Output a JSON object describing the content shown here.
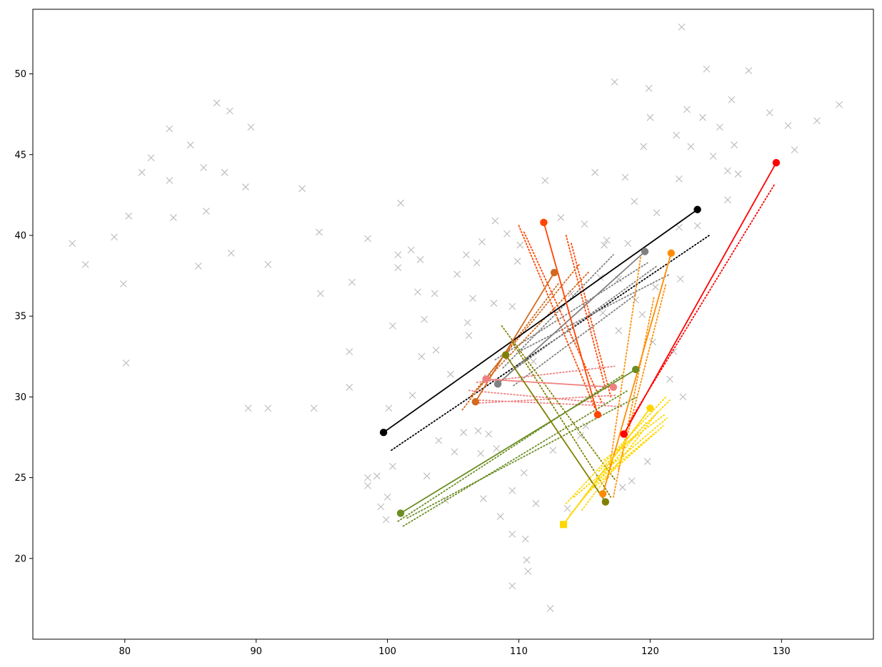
{
  "chart_data": {
    "type": "scatter",
    "title": "",
    "xlabel": "",
    "ylabel": "",
    "xlim": [
      73,
      137
    ],
    "ylim": [
      15,
      54
    ],
    "x_ticks": [
      80,
      90,
      100,
      110,
      120,
      130
    ],
    "y_ticks": [
      20,
      25,
      30,
      35,
      40,
      45,
      50
    ],
    "grid": false,
    "legend": "none",
    "background_points": {
      "marker": "x",
      "color": "#bbbbbb",
      "points": [
        [
          76.0,
          39.5
        ],
        [
          77.0,
          38.2
        ],
        [
          79.2,
          39.9
        ],
        [
          79.9,
          37.0
        ],
        [
          80.1,
          32.1
        ],
        [
          80.3,
          41.2
        ],
        [
          81.3,
          43.9
        ],
        [
          82.0,
          44.8
        ],
        [
          83.4,
          46.6
        ],
        [
          83.4,
          43.4
        ],
        [
          83.7,
          41.1
        ],
        [
          85.0,
          45.6
        ],
        [
          85.6,
          38.1
        ],
        [
          86.0,
          44.2
        ],
        [
          86.2,
          41.5
        ],
        [
          87.0,
          48.2
        ],
        [
          87.6,
          43.9
        ],
        [
          88.0,
          47.7
        ],
        [
          88.1,
          38.9
        ],
        [
          89.2,
          43.0
        ],
        [
          89.4,
          29.3
        ],
        [
          89.6,
          46.7
        ],
        [
          90.9,
          38.2
        ],
        [
          90.9,
          29.3
        ],
        [
          93.5,
          42.9
        ],
        [
          94.4,
          29.3
        ],
        [
          94.8,
          40.2
        ],
        [
          94.9,
          36.4
        ],
        [
          97.1,
          32.8
        ],
        [
          97.1,
          30.6
        ],
        [
          97.3,
          37.1
        ],
        [
          98.5,
          39.8
        ],
        [
          98.5,
          25.0
        ],
        [
          98.5,
          24.5
        ],
        [
          99.2,
          25.1
        ],
        [
          99.5,
          23.2
        ],
        [
          99.9,
          22.4
        ],
        [
          100.0,
          23.8
        ],
        [
          100.1,
          29.3
        ],
        [
          100.4,
          34.4
        ],
        [
          100.4,
          25.7
        ],
        [
          100.8,
          38.8
        ],
        [
          100.8,
          38.0
        ],
        [
          101.0,
          42.0
        ],
        [
          101.8,
          39.1
        ],
        [
          101.9,
          30.1
        ],
        [
          102.3,
          36.5
        ],
        [
          102.5,
          38.5
        ],
        [
          102.8,
          34.8
        ],
        [
          102.6,
          32.5
        ],
        [
          103.0,
          25.1
        ],
        [
          103.7,
          32.9
        ],
        [
          103.6,
          36.4
        ],
        [
          103.9,
          27.3
        ],
        [
          104.4,
          23.6
        ],
        [
          104.8,
          31.4
        ],
        [
          105.1,
          26.6
        ],
        [
          105.3,
          37.6
        ],
        [
          105.8,
          27.8
        ],
        [
          106.0,
          38.8
        ],
        [
          106.1,
          34.6
        ],
        [
          106.2,
          33.8
        ],
        [
          106.5,
          36.1
        ],
        [
          106.8,
          38.3
        ],
        [
          106.9,
          27.9
        ],
        [
          107.1,
          26.5
        ],
        [
          107.2,
          39.6
        ],
        [
          107.3,
          23.7
        ],
        [
          107.6,
          31.2
        ],
        [
          107.7,
          27.7
        ],
        [
          108.1,
          35.8
        ],
        [
          108.2,
          40.9
        ],
        [
          108.3,
          26.8
        ],
        [
          108.6,
          22.6
        ],
        [
          109.1,
          40.1
        ],
        [
          109.5,
          35.6
        ],
        [
          109.5,
          24.2
        ],
        [
          109.5,
          21.5
        ],
        [
          109.5,
          18.3
        ],
        [
          109.9,
          38.4
        ],
        [
          110.1,
          39.4
        ],
        [
          110.4,
          25.3
        ],
        [
          110.5,
          21.2
        ],
        [
          110.6,
          19.9
        ],
        [
          110.7,
          19.2
        ],
        [
          111.1,
          32.2
        ],
        [
          111.3,
          23.4
        ],
        [
          112.0,
          43.4
        ],
        [
          112.4,
          16.9
        ],
        [
          112.6,
          26.7
        ],
        [
          113.2,
          41.1
        ],
        [
          113.7,
          23.1
        ],
        [
          114.0,
          36.4
        ],
        [
          114.2,
          33.5
        ],
        [
          114.7,
          27.6
        ],
        [
          115.0,
          40.7
        ],
        [
          115.1,
          28.2
        ],
        [
          115.8,
          43.9
        ],
        [
          116.2,
          37.4
        ],
        [
          116.4,
          35.2
        ],
        [
          116.5,
          39.4
        ],
        [
          116.7,
          39.7
        ],
        [
          117.3,
          49.5
        ],
        [
          117.6,
          37.3
        ],
        [
          117.6,
          34.1
        ],
        [
          117.9,
          24.4
        ],
        [
          118.1,
          43.6
        ],
        [
          118.3,
          39.5
        ],
        [
          118.6,
          24.8
        ],
        [
          118.8,
          42.1
        ],
        [
          118.9,
          36.0
        ],
        [
          119.4,
          35.1
        ],
        [
          119.5,
          45.5
        ],
        [
          119.8,
          26.0
        ],
        [
          119.9,
          49.1
        ],
        [
          120.0,
          47.3
        ],
        [
          120.2,
          33.4
        ],
        [
          120.4,
          36.8
        ],
        [
          120.5,
          41.4
        ],
        [
          121.5,
          31.1
        ],
        [
          121.8,
          32.8
        ],
        [
          122.0,
          46.2
        ],
        [
          122.2,
          43.5
        ],
        [
          122.2,
          40.5
        ],
        [
          122.3,
          37.3
        ],
        [
          122.4,
          52.9
        ],
        [
          122.5,
          30.0
        ],
        [
          122.8,
          47.8
        ],
        [
          123.1,
          45.5
        ],
        [
          123.6,
          40.6
        ],
        [
          124.0,
          47.3
        ],
        [
          124.3,
          50.3
        ],
        [
          124.8,
          44.9
        ],
        [
          125.3,
          46.7
        ],
        [
          125.9,
          44.0
        ],
        [
          125.9,
          42.2
        ],
        [
          126.2,
          48.4
        ],
        [
          126.4,
          45.6
        ],
        [
          126.7,
          43.8
        ],
        [
          127.5,
          50.2
        ],
        [
          129.1,
          47.6
        ],
        [
          130.5,
          46.8
        ],
        [
          131.0,
          45.3
        ],
        [
          132.7,
          47.1
        ],
        [
          134.4,
          48.1
        ]
      ]
    },
    "series": [
      {
        "color": "#000000",
        "start_marker": "circle",
        "end_marker": "circle",
        "line": {
          "start": [
            99.7,
            27.8
          ],
          "end": [
            123.6,
            41.6
          ]
        },
        "dotted": [
          {
            "start": [
              100.3,
              26.7
            ],
            "end": [
              124.5,
              40.0
            ]
          }
        ]
      },
      {
        "color": "#808080",
        "start_marker": "circle",
        "end_marker": "circle",
        "line": {
          "start": [
            108.4,
            30.8
          ],
          "end": [
            119.6,
            39.0
          ]
        },
        "dotted": [
          {
            "start": [
              108.8,
              31.8
            ],
            "end": [
              117.2,
              38.8
            ]
          },
          {
            "start": [
              108.2,
              32.3
            ],
            "end": [
              119.8,
              38.3
            ]
          },
          {
            "start": [
              109.3,
              31.5
            ],
            "end": [
              120.5,
              38.1
            ]
          },
          {
            "start": [
              110.0,
              32.8
            ],
            "end": [
              121.5,
              37.6
            ]
          },
          {
            "start": [
              109.6,
              30.7
            ],
            "end": [
              119.0,
              36.4
            ]
          }
        ]
      },
      {
        "color": "#ff0000",
        "start_marker": "circle",
        "end_marker": "circle",
        "line": {
          "start": [
            118.0,
            27.7
          ],
          "end": [
            129.6,
            44.5
          ]
        },
        "dotted": [
          {
            "start": [
              118.3,
              28.3
            ],
            "end": [
              129.5,
              43.2
            ]
          }
        ]
      },
      {
        "color": "#ff8c00",
        "start_marker": "circle",
        "end_marker": "circle",
        "line": {
          "start": [
            116.4,
            24.0
          ],
          "end": [
            121.6,
            38.9
          ]
        },
        "dotted": [
          {
            "start": [
              116.8,
              25.0
            ],
            "end": [
              119.3,
              38.8
            ]
          },
          {
            "start": [
              117.2,
              23.8
            ],
            "end": [
              120.3,
              36.2
            ]
          },
          {
            "start": [
              117.6,
              25.5
            ],
            "end": [
              121.2,
              37.0
            ]
          }
        ]
      },
      {
        "color": "#ff4500",
        "start_marker": "circle",
        "end_marker": "circle",
        "line": {
          "start": [
            111.9,
            40.8
          ],
          "end": [
            116.0,
            28.9
          ]
        },
        "dotted": [
          {
            "start": [
              110.0,
              40.6
            ],
            "end": [
              115.8,
              29.3
            ]
          },
          {
            "start": [
              110.4,
              40.2
            ],
            "end": [
              116.3,
              29.7
            ]
          },
          {
            "start": [
              113.6,
              40.0
            ],
            "end": [
              116.6,
              30.5
            ]
          },
          {
            "start": [
              114.0,
              39.5
            ],
            "end": [
              117.0,
              30.0
            ]
          }
        ]
      },
      {
        "color": "#d2691e",
        "start_marker": "circle",
        "end_marker": "circle",
        "line": {
          "start": [
            106.7,
            29.7
          ],
          "end": [
            112.7,
            37.7
          ]
        },
        "dotted": [
          {
            "start": [
              105.7,
              29.2
            ],
            "end": [
              113.0,
              37.0
            ]
          },
          {
            "start": [
              106.3,
              30.0
            ],
            "end": [
              114.6,
              38.2
            ]
          },
          {
            "start": [
              107.0,
              30.6
            ],
            "end": [
              115.4,
              37.8
            ]
          }
        ]
      },
      {
        "color": "#f08080",
        "start_marker": "circle",
        "end_marker": "circle",
        "line": {
          "start": [
            107.5,
            31.1
          ],
          "end": [
            117.2,
            30.6
          ]
        },
        "dotted": [
          {
            "start": [
              106.8,
              30.9
            ],
            "end": [
              117.3,
              31.9
            ]
          },
          {
            "start": [
              106.2,
              30.4
            ],
            "end": [
              116.8,
              29.6
            ]
          },
          {
            "start": [
              107.0,
              29.8
            ],
            "end": [
              118.0,
              29.4
            ]
          },
          {
            "start": [
              106.5,
              29.6
            ],
            "end": [
              117.4,
              30.1
            ]
          }
        ]
      },
      {
        "color": "#6b8e23",
        "start_marker": "circle",
        "end_marker": "circle",
        "line": {
          "start": [
            101.0,
            22.8
          ],
          "end": [
            118.9,
            31.7
          ]
        },
        "dotted": [
          {
            "start": [
              100.8,
              22.3
            ],
            "end": [
              118.0,
              31.4
            ]
          },
          {
            "start": [
              101.2,
              22.0
            ],
            "end": [
              118.3,
              30.4
            ]
          },
          {
            "start": [
              101.5,
              22.5
            ],
            "end": [
              119.0,
              30.0
            ]
          }
        ]
      },
      {
        "color": "#808000",
        "start_marker": "circle",
        "end_marker": "circle",
        "line": {
          "start": [
            109.0,
            32.6
          ],
          "end": [
            116.6,
            23.5
          ]
        },
        "dotted": [
          {
            "start": [
              108.7,
              34.4
            ],
            "end": [
              117.3,
              24.9
            ]
          },
          {
            "start": [
              109.5,
              33.4
            ],
            "end": [
              117.0,
              23.8
            ]
          }
        ]
      },
      {
        "color": "#ffd700",
        "start_marker": "square",
        "end_marker": "circle",
        "line": {
          "start": [
            113.4,
            22.1
          ],
          "end": [
            120.0,
            29.3
          ]
        },
        "dotted": [
          {
            "start": [
              113.6,
              23.4
            ],
            "end": [
              121.2,
              30.0
            ]
          },
          {
            "start": [
              114.2,
              23.8
            ],
            "end": [
              121.3,
              28.7
            ]
          },
          {
            "start": [
              114.8,
              23.0
            ],
            "end": [
              120.6,
              29.1
            ]
          },
          {
            "start": [
              115.3,
              24.1
            ],
            "end": [
              121.0,
              28.2
            ]
          },
          {
            "start": [
              115.7,
              24.6
            ],
            "end": [
              120.4,
              27.8
            ]
          },
          {
            "start": [
              116.1,
              25.4
            ],
            "end": [
              121.5,
              29.8
            ]
          },
          {
            "start": [
              113.9,
              22.7
            ],
            "end": [
              119.7,
              28.4
            ]
          },
          {
            "start": [
              116.5,
              26.1
            ],
            "end": [
              121.1,
              28.9
            ]
          }
        ]
      }
    ]
  }
}
